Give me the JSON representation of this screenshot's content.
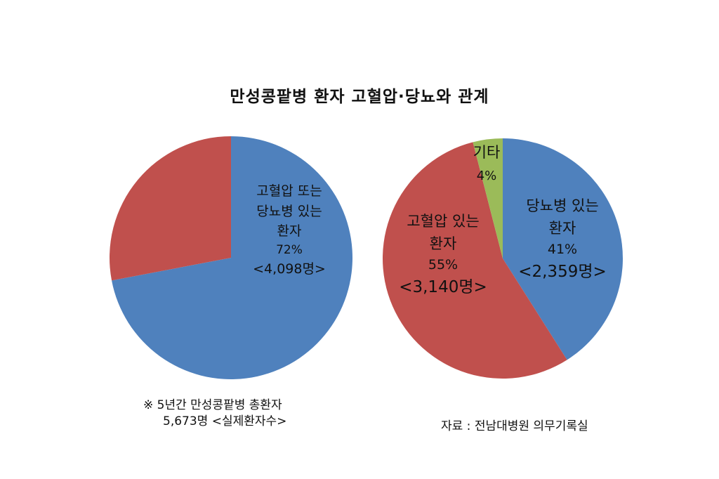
{
  "title": "만성콩팥병 환자 고혈압·당뇨와 관계",
  "chart_data": [
    {
      "type": "pie",
      "slices": [
        {
          "label_lines": [
            "고혈압 또는",
            "당뇨병 있는",
            "환자"
          ],
          "percent_text": "72%",
          "count_text": "<4,098명>",
          "value": 72,
          "color": "#4F81BD"
        },
        {
          "label_lines": [],
          "percent_text": "",
          "count_text": "",
          "value": 28,
          "color": "#C0504D"
        }
      ]
    },
    {
      "type": "pie",
      "slices": [
        {
          "label_lines": [
            "당뇨병 있는",
            "환자"
          ],
          "percent_text": "41%",
          "count_text": "<2,359명>",
          "value": 41,
          "color": "#4F81BD"
        },
        {
          "label_lines": [
            "고혈압 있는",
            "환자"
          ],
          "percent_text": "55%",
          "count_text": "<3,140명>",
          "value": 55,
          "color": "#C0504D"
        },
        {
          "label_lines": [
            "기타"
          ],
          "percent_text": "4%",
          "count_text": "",
          "value": 4,
          "color": "#9BBB59"
        }
      ]
    }
  ],
  "note": {
    "line1": "※ 5년간 만성콩팥병 총환자",
    "line2": "5,673명 <실제환자수>"
  },
  "source": "자료 : 전남대병원 의무기록실"
}
